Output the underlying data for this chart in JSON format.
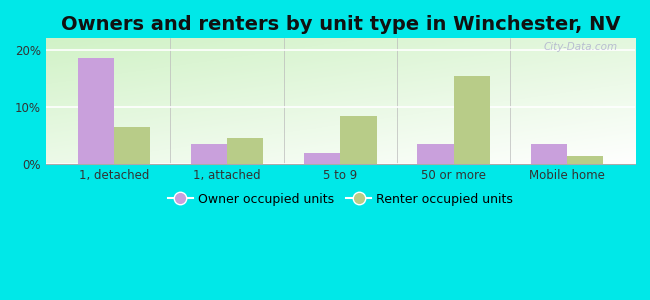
{
  "title": "Owners and renters by unit type in Winchester, NV",
  "categories": [
    "1, detached",
    "1, attached",
    "5 to 9",
    "50 or more",
    "Mobile home"
  ],
  "owner_values": [
    18.5,
    3.5,
    2.0,
    3.5,
    3.5
  ],
  "renter_values": [
    6.5,
    4.5,
    8.5,
    15.5,
    1.5
  ],
  "owner_color": "#c9a0dc",
  "renter_color": "#b8cc88",
  "background_outer": "#00e8e8",
  "background_inner_top": "#b8d8a0",
  "background_inner_bottom": "#f0faf0",
  "yticks": [
    0,
    10,
    20
  ],
  "ylim": [
    0,
    22
  ],
  "legend_owner": "Owner occupied units",
  "legend_renter": "Renter occupied units",
  "title_fontsize": 14,
  "tick_fontsize": 8.5,
  "legend_fontsize": 9,
  "bar_width": 0.32,
  "watermark": "City-Data.com"
}
